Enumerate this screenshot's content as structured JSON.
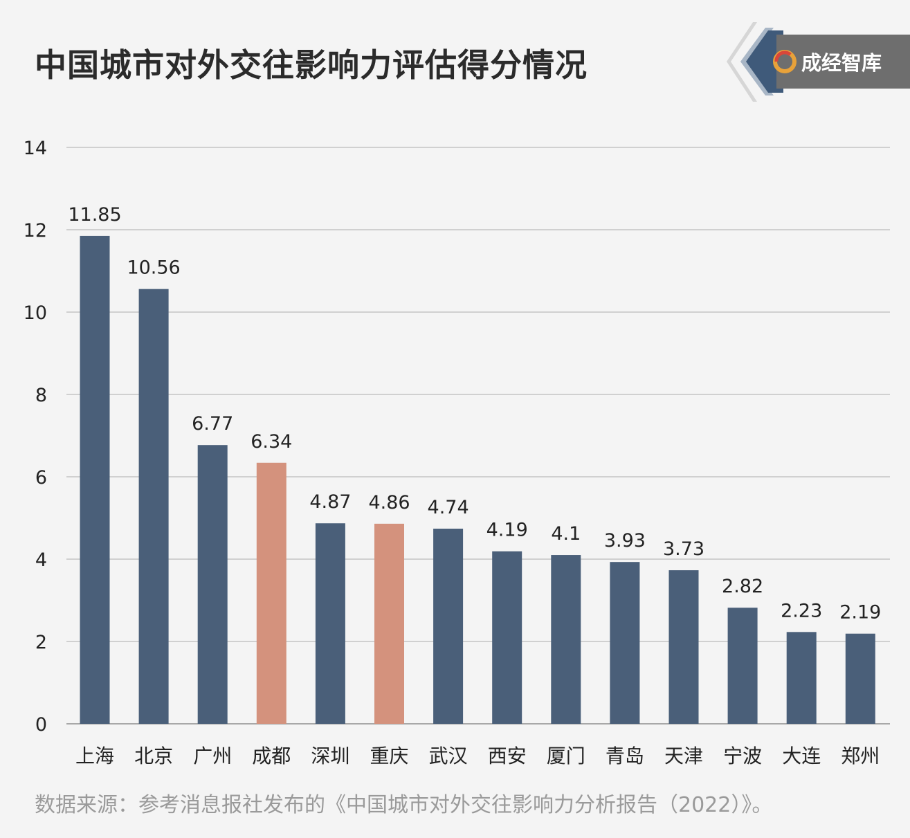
{
  "title": "中国城市对外交往影响力评估得分情况",
  "logo": {
    "text": "成经智库"
  },
  "source": "数据来源：参考消息报社发布的《中国城市对外交往影响力分析报告（2022）》。",
  "colors": {
    "bar": "#4a5f79",
    "highlight": "#d4927d",
    "grid": "#c4c4c4",
    "text": "#222222"
  },
  "chart_data": {
    "type": "bar",
    "categories": [
      "上海",
      "北京",
      "广州",
      "成都",
      "深圳",
      "重庆",
      "武汉",
      "西安",
      "厦门",
      "青岛",
      "天津",
      "宁波",
      "大连",
      "郑州"
    ],
    "values": [
      11.85,
      10.56,
      6.77,
      6.34,
      4.87,
      4.86,
      4.74,
      4.19,
      4.1,
      3.93,
      3.73,
      2.82,
      2.23,
      2.19
    ],
    "value_labels": [
      "11.85",
      "10.56",
      "6.77",
      "6.34",
      "4.87",
      "4.86",
      "4.74",
      "4.19",
      "4.1",
      "3.93",
      "3.73",
      "2.82",
      "2.23",
      "2.19"
    ],
    "highlighted": [
      "成都",
      "重庆"
    ],
    "ylim": [
      0,
      14
    ],
    "yticks": [
      "0",
      "2",
      "4",
      "6",
      "8",
      "10",
      "12",
      "14"
    ],
    "grid": true,
    "legend": "none"
  }
}
